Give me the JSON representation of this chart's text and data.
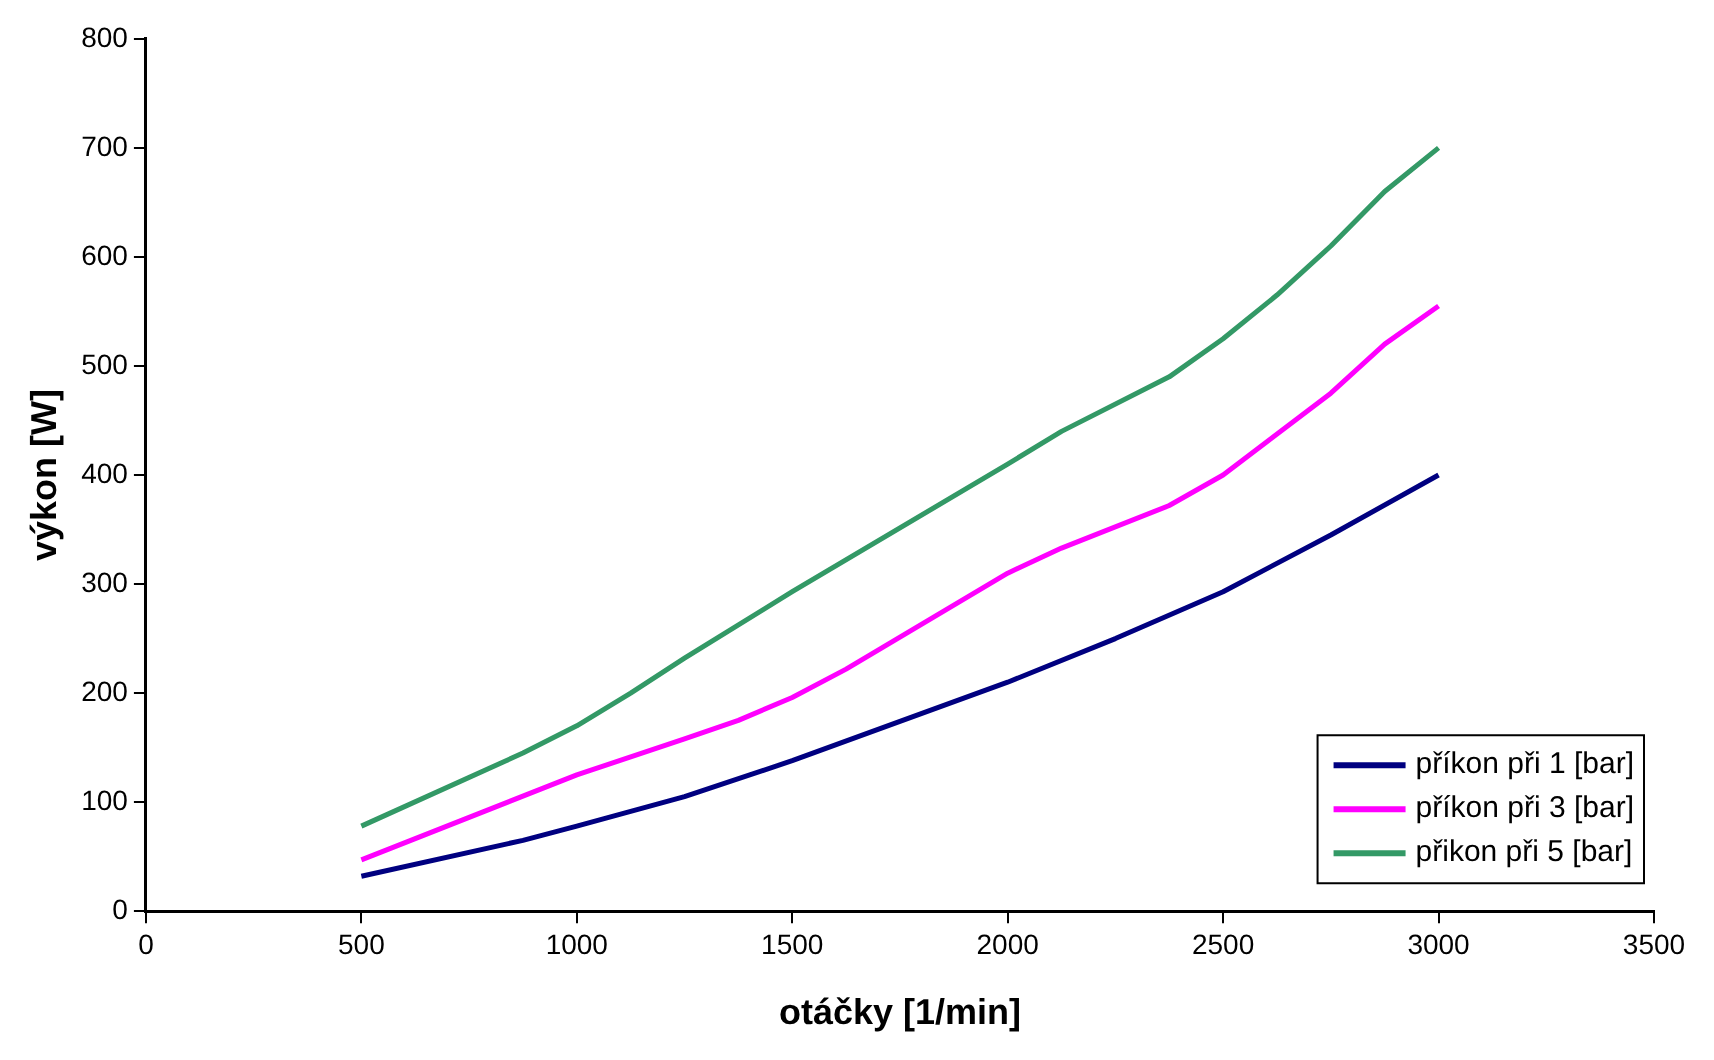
{
  "chart_data": {
    "type": "line",
    "xlabel": "otáčky [1/min]",
    "ylabel": "výkon [W]",
    "xlim": [
      0,
      3500
    ],
    "xticks": [
      0,
      500,
      1000,
      1500,
      2000,
      2500,
      3000,
      3500
    ],
    "ylim": [
      0,
      800
    ],
    "yticks": [
      0,
      100,
      200,
      300,
      400,
      500,
      600,
      700,
      800
    ],
    "grid": false,
    "legend": "bottom right",
    "marker": "none",
    "line_style": "solid",
    "series": [
      {
        "name": "příkon při 1 [bar]",
        "color": "#000080",
        "x": [
          500,
          875,
          1000,
          1250,
          1500,
          2000,
          2250,
          2500,
          2750,
          3000
        ],
        "values": [
          32,
          65,
          78,
          105,
          138,
          210,
          250,
          293,
          345,
          400
        ]
      },
      {
        "name": "příkon při 3 [bar]",
        "color": "#ff00ff",
        "x": [
          500,
          1000,
          1250,
          1375,
          1500,
          1625,
          2000,
          2125,
          2375,
          2500,
          2750,
          2875,
          3000
        ],
        "values": [
          47,
          125,
          158,
          175,
          196,
          222,
          310,
          333,
          372,
          400,
          475,
          520,
          555
        ]
      },
      {
        "name": "přikon při 5 [bar]",
        "color": "#339966",
        "x": [
          500,
          875,
          1000,
          1125,
          1250,
          1500,
          2000,
          2125,
          2375,
          2500,
          2625,
          2750,
          2875,
          3000
        ],
        "values": [
          78,
          145,
          170,
          200,
          232,
          293,
          410,
          440,
          490,
          525,
          565,
          610,
          660,
          700
        ]
      }
    ]
  }
}
